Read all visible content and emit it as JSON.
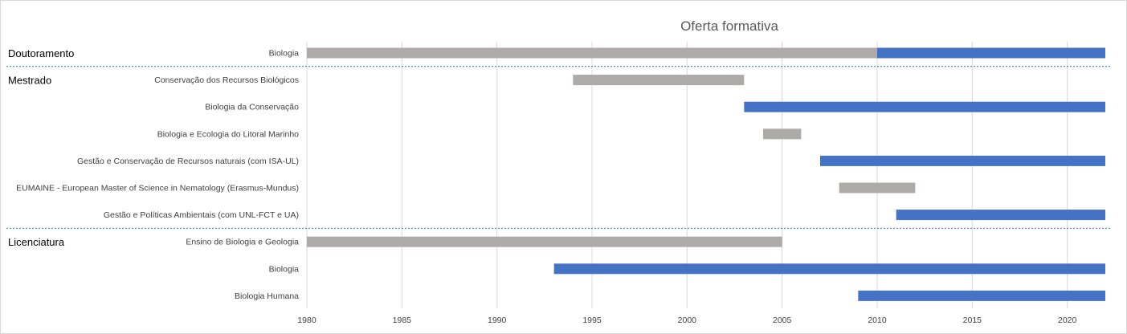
{
  "chart_data": {
    "type": "bar",
    "orientation": "horizontal-range",
    "title": "Oferta formativa",
    "xlim": [
      1980,
      2022
    ],
    "x_ticks": [
      "1980",
      "1985",
      "1990",
      "1995",
      "2000",
      "2005",
      "2010",
      "2015",
      "2020"
    ],
    "grid": true,
    "colors": {
      "historical": "#aeaaaa",
      "current": "#4472c4"
    },
    "groups": [
      {
        "label": "Doutoramento",
        "rows": [
          {
            "label": "Biologia",
            "segments": [
              {
                "start": 1980,
                "end": 2010,
                "kind": "historical"
              },
              {
                "start": 2010,
                "end": 2022,
                "kind": "current"
              }
            ]
          }
        ]
      },
      {
        "label": "Mestrado",
        "rows": [
          {
            "label": "Conservação dos Recursos Biológicos",
            "segments": [
              {
                "start": 1994,
                "end": 2003,
                "kind": "historical"
              }
            ]
          },
          {
            "label": "Biologia da Conservação",
            "segments": [
              {
                "start": 2003,
                "end": 2022,
                "kind": "current"
              }
            ]
          },
          {
            "label": "Biologia e Ecologia do Litoral Marinho",
            "segments": [
              {
                "start": 2004,
                "end": 2006,
                "kind": "historical"
              }
            ]
          },
          {
            "label": "Gestão e Conservação de Recursos naturais (com ISA-UL)",
            "segments": [
              {
                "start": 2007,
                "end": 2022,
                "kind": "current"
              }
            ]
          },
          {
            "label": "EUMAINE - European Master of Science in Nematology (Erasmus-Mundus)",
            "segments": [
              {
                "start": 2008,
                "end": 2012,
                "kind": "historical"
              }
            ]
          },
          {
            "label": "Gestão e Políticas Ambientais (com UNL-FCT e UA)",
            "segments": [
              {
                "start": 2011,
                "end": 2022,
                "kind": "current"
              }
            ]
          }
        ]
      },
      {
        "label": "Licenciatura",
        "rows": [
          {
            "label": "Ensino de Biologia e Geologia",
            "segments": [
              {
                "start": 1980,
                "end": 2005,
                "kind": "historical"
              }
            ]
          },
          {
            "label": "Biologia",
            "segments": [
              {
                "start": 1993,
                "end": 2022,
                "kind": "current"
              }
            ]
          },
          {
            "label": "Biologia Humana",
            "segments": [
              {
                "start": 2009,
                "end": 2022,
                "kind": "current"
              }
            ]
          }
        ]
      }
    ]
  }
}
